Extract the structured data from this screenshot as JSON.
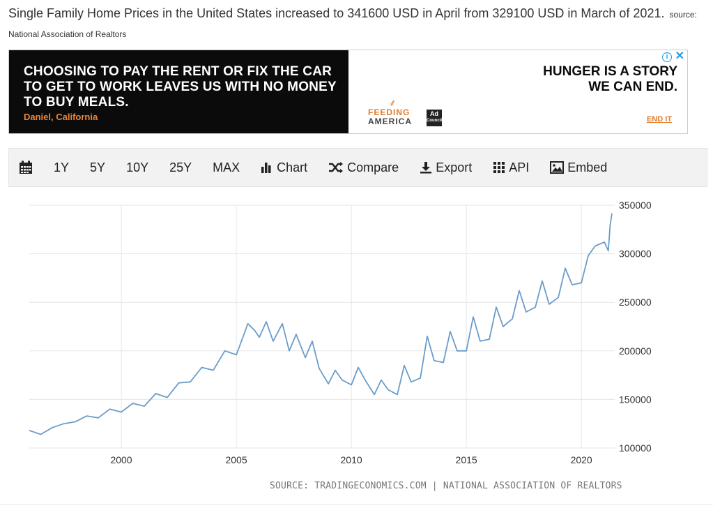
{
  "headline": {
    "text": "Single Family Home Prices in the United States increased to 341600 USD in April from 329100 USD in March of 2021.",
    "source": "source: National Association of Realtors"
  },
  "ad": {
    "quote": "CHOOSING TO PAY THE RENT OR FIX THE CAR TO GET TO WORK LEAVES US WITH NO MONEY TO BUY MEALS.",
    "person": "Daniel, California",
    "logo_line1": "FEEDING",
    "logo_line2": "AMERICA",
    "council_line1": "Ad",
    "council_line2": "Council",
    "tagline": "HUNGER IS A STORY WE CAN END.",
    "cta": "END IT",
    "info_icon": "i",
    "close_icon": "✕",
    "colors": {
      "background_left": "#0b0b0b",
      "accent": "#e07b2c",
      "info": "#1a9ee0"
    }
  },
  "toolbar": {
    "calendar_icon": "calendar-icon",
    "ranges": [
      "1Y",
      "5Y",
      "10Y",
      "25Y",
      "MAX"
    ],
    "chart_label": "Chart",
    "compare_label": "Compare",
    "export_label": "Export",
    "api_label": "API",
    "embed_label": "Embed"
  },
  "chart_source": "SOURCE: TRADINGECONOMICS.COM | NATIONAL ASSOCIATION OF REALTORS",
  "chart_data": {
    "type": "line",
    "title": "",
    "xlabel": "",
    "ylabel": "",
    "line_color": "#6a9cc9",
    "grid": true,
    "x_ticks": [
      2000,
      2005,
      2010,
      2015,
      2020
    ],
    "y_ticks": [
      100000,
      150000,
      200000,
      250000,
      300000,
      350000
    ],
    "xlim": [
      1996.0,
      2021.45
    ],
    "ylim": [
      100000,
      350000
    ],
    "series": [
      {
        "x": [
          1996.0,
          1996.5,
          1997.0,
          1997.5,
          1998.0,
          1998.5,
          1999.0,
          1999.5,
          2000.0,
          2000.5,
          2001.0,
          2001.5,
          2002.0,
          2002.5,
          2003.0,
          2003.5,
          2004.0,
          2004.5,
          2005.0,
          2005.3,
          2005.5,
          2005.8,
          2006.0,
          2006.3,
          2006.6,
          2007.0,
          2007.3,
          2007.6,
          2008.0,
          2008.3,
          2008.6,
          2009.0,
          2009.3,
          2009.6,
          2010.0,
          2010.3,
          2010.6,
          2011.0,
          2011.3,
          2011.6,
          2012.0,
          2012.3,
          2012.6,
          2013.0,
          2013.3,
          2013.6,
          2014.0,
          2014.3,
          2014.6,
          2015.0,
          2015.3,
          2015.6,
          2016.0,
          2016.3,
          2016.6,
          2017.0,
          2017.3,
          2017.6,
          2018.0,
          2018.3,
          2018.6,
          2019.0,
          2019.3,
          2019.6,
          2020.0,
          2020.3,
          2020.6,
          2021.0,
          2021.17,
          2021.25,
          2021.33
        ],
        "values": [
          118000,
          114000,
          121000,
          125000,
          127000,
          133000,
          131000,
          140000,
          137000,
          146000,
          143000,
          156000,
          152000,
          167000,
          168000,
          183000,
          180000,
          200000,
          196000,
          215000,
          228000,
          221000,
          214000,
          230000,
          210000,
          228000,
          200000,
          217000,
          193000,
          210000,
          182000,
          166000,
          180000,
          170000,
          165000,
          183000,
          170000,
          155000,
          170000,
          160000,
          155000,
          185000,
          168000,
          172000,
          215000,
          190000,
          188000,
          220000,
          200000,
          200000,
          235000,
          210000,
          212000,
          245000,
          225000,
          233000,
          262000,
          240000,
          245000,
          272000,
          248000,
          255000,
          285000,
          268000,
          270000,
          298000,
          308000,
          312000,
          303000,
          329100,
          341600
        ]
      }
    ]
  }
}
